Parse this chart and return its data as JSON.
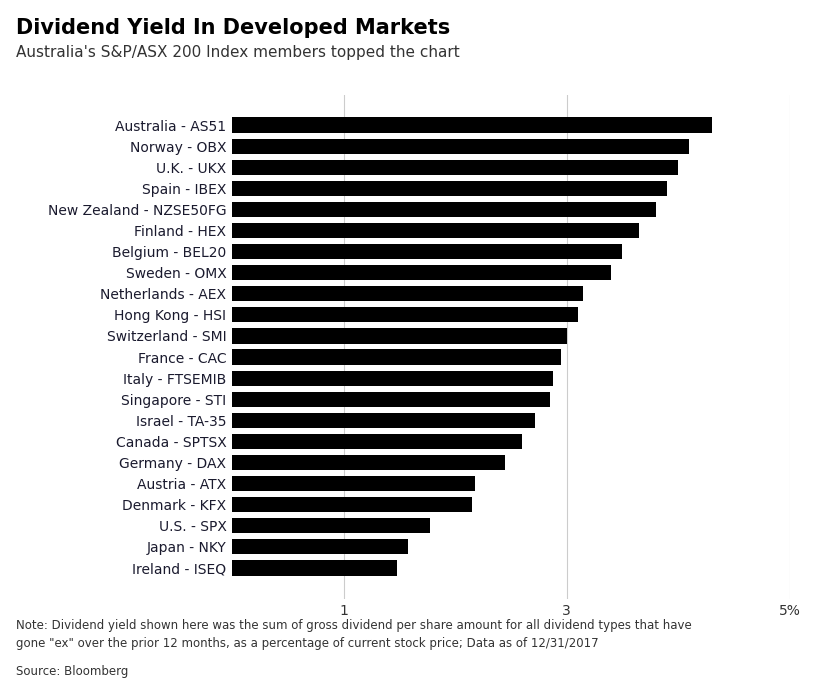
{
  "title": "Dividend Yield In Developed Markets",
  "subtitle": "Australia's S&P/ASX 200 Index members topped the chart",
  "note": "Note: Dividend yield shown here was the sum of gross dividend per share amount for all dividend types that have\ngone \"ex\" over the prior 12 months, as a percentage of current stock price; Data as of 12/31/2017",
  "source": "Source: Bloomberg",
  "categories": [
    "Australia - AS51",
    "Norway - OBX",
    "U.K. - UKX",
    "Spain - IBEX",
    "New Zealand - NZSE50FG",
    "Finland - HEX",
    "Belgium - BEL20",
    "Sweden - OMX",
    "Netherlands - AEX",
    "Hong Kong - HSI",
    "Switzerland - SMI",
    "France - CAC",
    "Italy - FTSEMIB",
    "Singapore - STI",
    "Israel - TA-35",
    "Canada - SPTSX",
    "Germany - DAX",
    "Austria - ATX",
    "Denmark - KFX",
    "U.S. - SPX",
    "Japan - NKY",
    "Ireland - ISEQ"
  ],
  "values": [
    4.3,
    4.1,
    4.0,
    3.9,
    3.8,
    3.65,
    3.5,
    3.4,
    3.15,
    3.1,
    3.0,
    2.95,
    2.88,
    2.85,
    2.72,
    2.6,
    2.45,
    2.18,
    2.15,
    1.78,
    1.58,
    1.48
  ],
  "bar_color": "#000000",
  "label_color": "#1a1a2e",
  "xlim": [
    0,
    5
  ],
  "xticks": [
    1,
    3,
    5
  ],
  "xticklabels": [
    "1",
    "3",
    "5%"
  ],
  "grid_lines": [
    1,
    3,
    5
  ],
  "bg_color": "#ffffff",
  "title_fontsize": 15,
  "subtitle_fontsize": 11,
  "note_fontsize": 8.5,
  "label_fontsize": 10,
  "bar_height": 0.72
}
